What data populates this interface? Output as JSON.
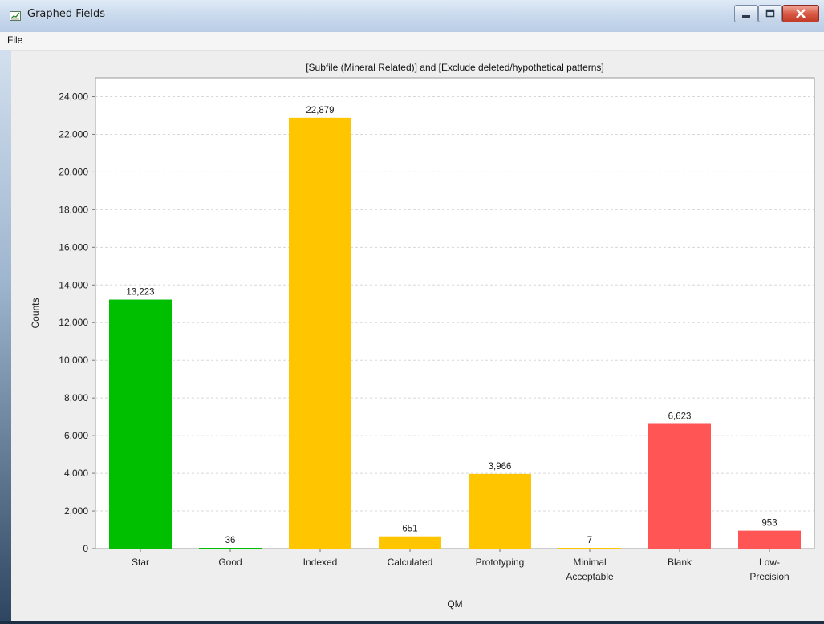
{
  "window": {
    "title": "Graphed Fields",
    "icon": "chart-icon",
    "controls": [
      "minimize-icon",
      "maximize-icon",
      "close-icon"
    ]
  },
  "menu": {
    "file": "File"
  },
  "chart_data": {
    "type": "bar",
    "title": "[Subfile (Mineral Related)] and [Exclude deleted/hypothetical patterns]",
    "xlabel": "QM",
    "ylabel": "Counts",
    "ylim": [
      0,
      25000
    ],
    "yticks": [
      0,
      2000,
      4000,
      6000,
      8000,
      10000,
      12000,
      14000,
      16000,
      18000,
      20000,
      22000,
      24000
    ],
    "grid": "horizontal dashed",
    "categories": [
      [
        "Star"
      ],
      [
        "Good"
      ],
      [
        "Indexed"
      ],
      [
        "Calculated"
      ],
      [
        "Prototyping"
      ],
      [
        "Minimal",
        "Acceptable"
      ],
      [
        "Blank"
      ],
      [
        "Low-",
        "Precision"
      ]
    ],
    "values": [
      13223,
      36,
      22879,
      651,
      3966,
      7,
      6623,
      953
    ],
    "value_labels": [
      "13,223",
      "36",
      "22,879",
      "651",
      "3,966",
      "7",
      "6,623",
      "953"
    ],
    "colors": [
      "#00bf00",
      "#00bf00",
      "#ffc600",
      "#ffc600",
      "#ffc600",
      "#ffc600",
      "#ff5555",
      "#ff5555"
    ]
  }
}
